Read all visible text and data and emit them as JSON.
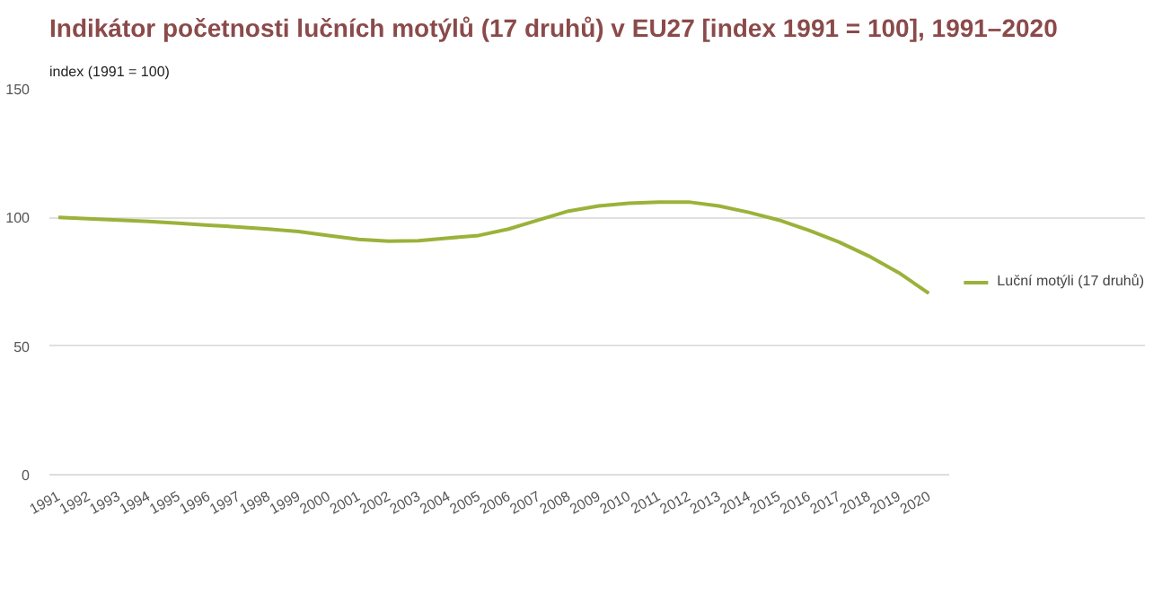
{
  "chart_data": {
    "type": "line",
    "title": "Indikátor početnosti lučních motýlů (17 druhů) v EU27 [index 1991 = 100], 1991–2020",
    "subtitle": "index (1991 = 100)",
    "categories": [
      "1991",
      "1992",
      "1993",
      "1994",
      "1995",
      "1996",
      "1997",
      "1998",
      "1999",
      "2000",
      "2001",
      "2002",
      "2003",
      "2004",
      "2005",
      "2006",
      "2007",
      "2008",
      "2009",
      "2010",
      "2011",
      "2012",
      "2013",
      "2014",
      "2015",
      "2016",
      "2017",
      "2018",
      "2019",
      "2020"
    ],
    "series": [
      {
        "name": "Luční motýli (17 druhů)",
        "color": "#9ab23a",
        "values": [
          100,
          99.5,
          99,
          98.5,
          97.8,
          97,
          96.3,
          95.5,
          94.5,
          93,
          91.5,
          90.8,
          91,
          92,
          93,
          95.5,
          99,
          102.5,
          104.5,
          105.5,
          106,
          106,
          104.5,
          102,
          99,
          95,
          90.5,
          85,
          78.5,
          70.5
        ]
      }
    ],
    "ylim": [
      0,
      150
    ],
    "yticks": [
      0,
      50,
      100,
      150
    ],
    "grid": "y",
    "legend": "right",
    "marker": "none",
    "line_style": "solid"
  }
}
